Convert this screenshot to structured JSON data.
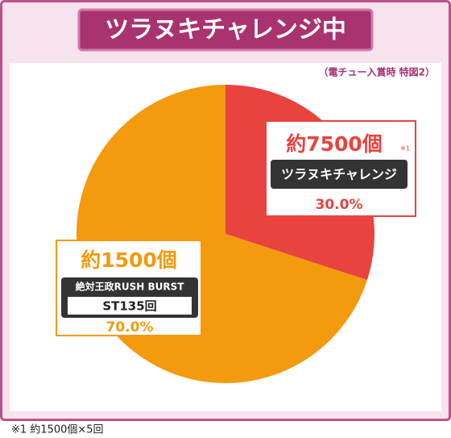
{
  "chart_data": {
    "type": "pie",
    "title": "ツラヌキチャレンジ中",
    "subtitle": "（電チュー入賞時 特図2）",
    "categories": [
      "ツラヌキチャレンジ",
      "絶対王政RUSH BURST"
    ],
    "values": [
      30.0,
      70.0
    ],
    "value_labels": [
      "30.0%",
      "70.0%"
    ],
    "colors": [
      "#e8433f",
      "#f39a0f"
    ],
    "payouts": [
      "約7500個",
      "約1500個"
    ],
    "payout_note": "※1",
    "detail": "ST135回",
    "footnote": "※1 約1500個×5回"
  }
}
